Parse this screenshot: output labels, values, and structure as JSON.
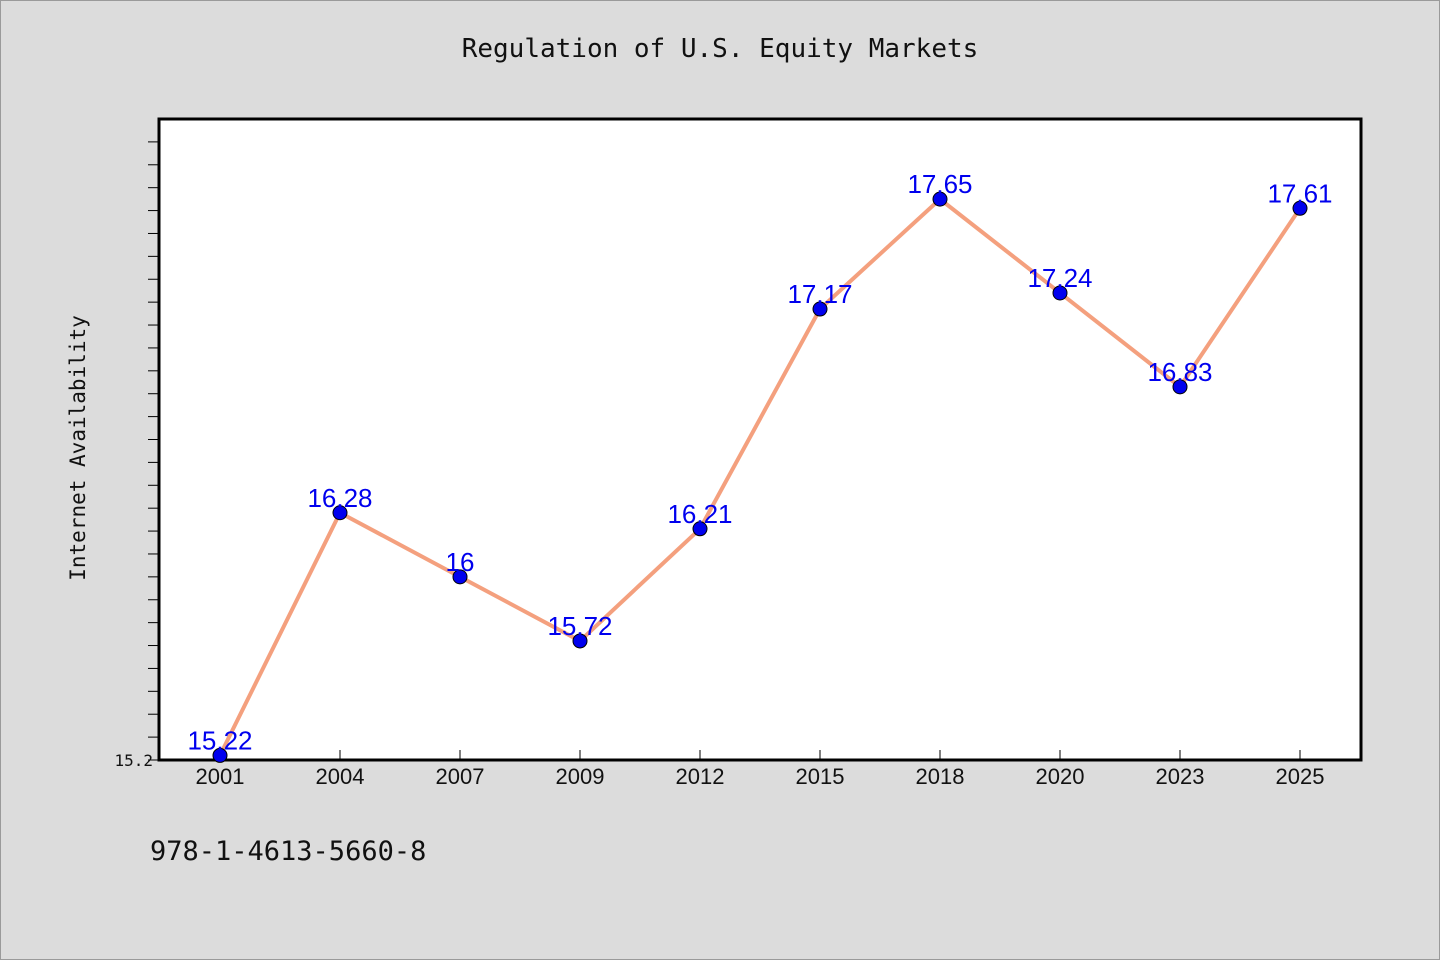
{
  "chart_data": {
    "type": "line",
    "title": "Regulation of U.S. Equity Markets",
    "ylabel": "Internet Availability",
    "xlabel": "",
    "categories": [
      "2001",
      "2004",
      "2007",
      "2009",
      "2012",
      "2015",
      "2018",
      "2020",
      "2023",
      "2025"
    ],
    "values": [
      15.22,
      16.28,
      16.0,
      15.72,
      16.21,
      17.17,
      17.65,
      17.24,
      16.83,
      17.61
    ],
    "data_labels": [
      "15.22",
      "16.28",
      "16",
      "15.72",
      "16.21",
      "17.17",
      "17.65",
      "17.24",
      "16.83",
      "17.61"
    ],
    "ylim": [
      15.2,
      18.0
    ],
    "yticks_labeled": [
      "15.2"
    ],
    "grid": false,
    "legend": "none",
    "line_color": "#f4a07e",
    "marker_color": "#0000ee",
    "label_color": "#0000ee"
  },
  "footer": {
    "text": "978-1-4613-5660-8"
  }
}
